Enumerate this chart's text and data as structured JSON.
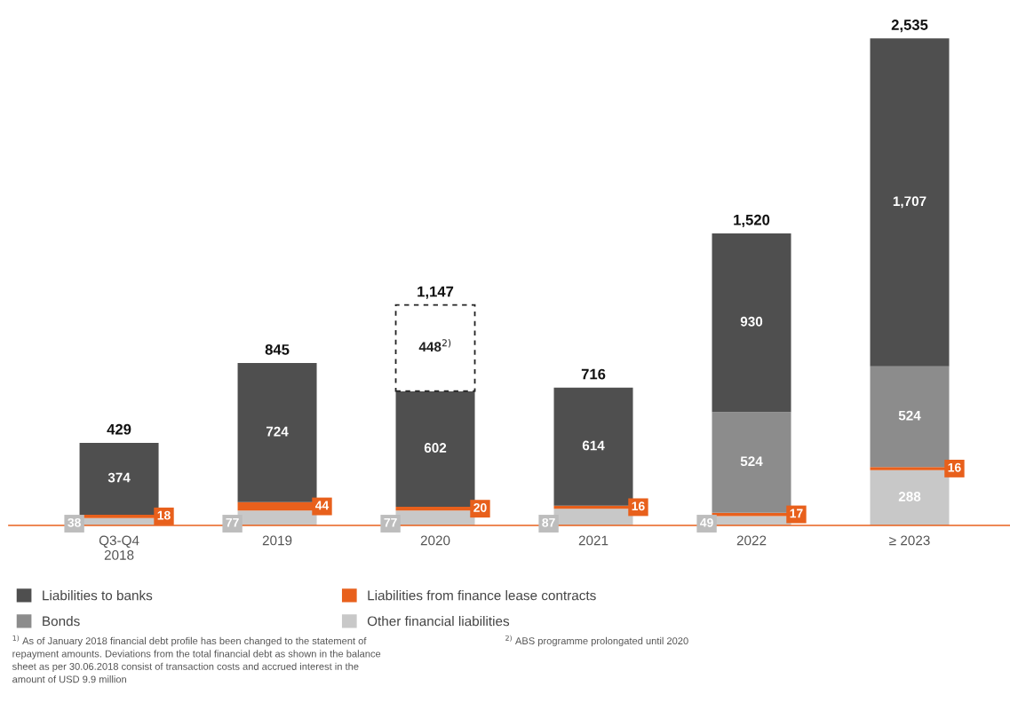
{
  "chart_data": {
    "type": "bar",
    "stacked": true,
    "data_labels": true,
    "legend": "bottom",
    "grid": false,
    "categories": [
      "Q3-Q4\n2018",
      "2019",
      "2020",
      "2021",
      "2022",
      "≥ 2023"
    ],
    "series": [
      {
        "name": "Other financial liabilities",
        "color": "#c8c8c8",
        "values": [
          38,
          77,
          77,
          87,
          49,
          288
        ]
      },
      {
        "name": "Liabilities from finance lease contracts",
        "color": "#e8601c",
        "values": [
          18,
          44,
          20,
          16,
          17,
          16
        ]
      },
      {
        "name": "Bonds",
        "color": "#8c8c8c",
        "values": [
          null,
          null,
          null,
          null,
          524,
          524
        ]
      },
      {
        "name": "Liabilities to banks",
        "color": "#4f4f4f",
        "values": [
          374,
          724,
          602,
          614,
          930,
          1707
        ],
        "value_labels": [
          "374",
          "724",
          "602",
          "614",
          "930",
          "1,707"
        ]
      },
      {
        "color": "#ffffff",
        "line_style": "dashed",
        "values": [
          null,
          null,
          448,
          null,
          null,
          null
        ],
        "value_labels": [
          null,
          null,
          "448$^{2)}$",
          null,
          null,
          null
        ]
      }
    ],
    "totals": [
      "429",
      "845",
      "1,147",
      "716",
      "1,520",
      "2,535"
    ],
    "annotations": [
      "$^{1)}$ As of January 2018 financial debt profile has been changed to the statement of\nrepayment amounts. Deviations from the total financial debt as shown in the balance\nsheet as per 30.06.2018 consist of transaction costs and accrued interest in the\namount of USD 9.9 million",
      "$^{2)}$ ABS programme prolongated until 2020"
    ]
  }
}
